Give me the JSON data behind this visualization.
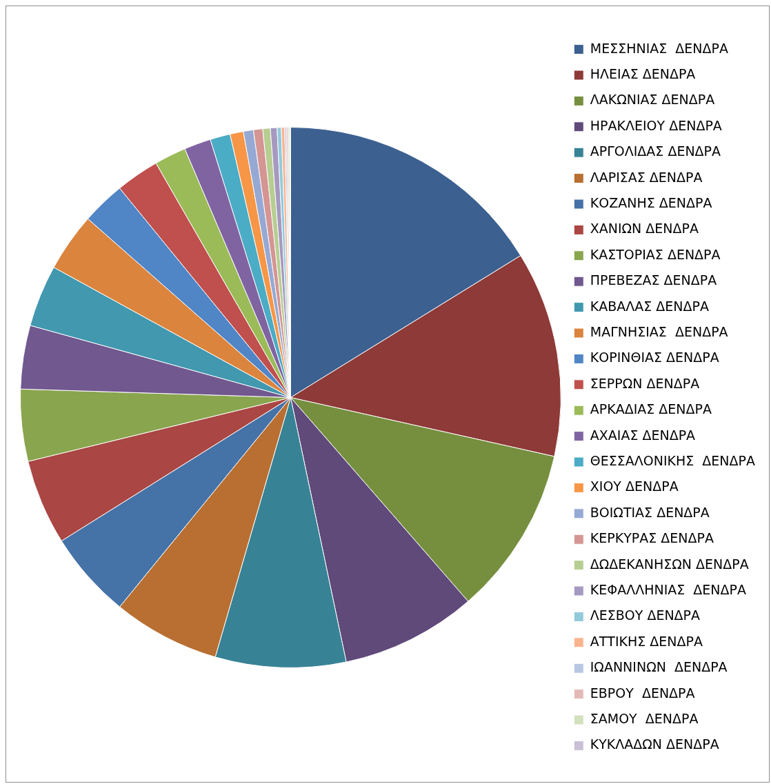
{
  "chart_data": {
    "type": "pie",
    "legend": "right",
    "categories": [
      "ΜΕΣΣΗΝΙΑΣ  ΔΕΝΔΡΑ",
      "ΗΛΕΙΑΣ ΔΕΝΔΡΑ",
      "ΛΑΚΩΝΙΑΣ ΔΕΝΔΡΑ",
      "ΗΡΑΚΛΕΙΟΥ ΔΕΝΔΡΑ",
      "ΑΡΓΟΛΙΔΑΣ ΔΕΝΔΡΑ",
      "ΛΑΡΙΣΑΣ ΔΕΝΔΡΑ",
      "ΚΟΖΑΝΗΣ ΔΕΝΔΡΑ",
      "ΧΑΝΙΩΝ ΔΕΝΔΡΑ",
      "ΚΑΣΤΟΡΙΑΣ ΔΕΝΔΡΑ",
      "ΠΡΕΒΕΖΑΣ ΔΕΝΔΡΑ",
      "ΚΑΒΑΛΑΣ ΔΕΝΔΡΑ",
      "ΜΑΓΝΗΣΙΑΣ  ΔΕΝΔΡΑ",
      "ΚΟΡΙΝΘΙΑΣ ΔΕΝΔΡΑ",
      "ΣΕΡΡΩΝ ΔΕΝΔΡΑ",
      "ΑΡΚΑΔΙΑΣ ΔΕΝΔΡΑ",
      "ΑΧΑΙΑΣ ΔΕΝΔΡΑ",
      "ΘΕΣΣΑΛΟΝΙΚΗΣ  ΔΕΝΔΡΑ",
      "ΧΙΟΥ ΔΕΝΔΡΑ",
      "ΒΟΙΩΤΙΑΣ ΔΕΝΔΡΑ",
      "ΚΕΡΚΥΡΑΣ ΔΕΝΔΡΑ",
      "ΔΩΔΕΚΑΝΗΣΩΝ ΔΕΝΔΡΑ",
      "ΚΕΦΑΛΛΗΝΙΑΣ  ΔΕΝΔΡΑ",
      "ΛΕΣΒΟΥ ΔΕΝΔΡΑ",
      "ΑΤΤΙΚΗΣ ΔΕΝΔΡΑ",
      "ΙΩΑΝΝΙΝΩΝ  ΔΕΝΔΡΑ",
      "ΕΒΡΟΥ  ΔΕΝΔΡΑ",
      "ΣΑΜΟΥ  ΔΕΝΔΡΑ",
      "ΚΥΚΛΑΔΩΝ ΔΕΝΔΡΑ"
    ],
    "values": [
      16.2,
      12.3,
      10.1,
      8.1,
      7.8,
      6.4,
      5.2,
      5.1,
      4.3,
      3.8,
      3.7,
      3.5,
      2.6,
      2.6,
      1.9,
      1.6,
      1.2,
      0.8,
      0.6,
      0.55,
      0.45,
      0.4,
      0.25,
      0.2,
      0.1,
      0.1,
      0.1,
      0.05
    ],
    "colors": [
      "#3c6090",
      "#8e3a38",
      "#768f3f",
      "#5f4a7a",
      "#388295",
      "#b86f31",
      "#4572a7",
      "#aa4643",
      "#89a54e",
      "#71588f",
      "#4198af",
      "#db843d",
      "#5085c6",
      "#c0504d",
      "#9bbb59",
      "#8064a2",
      "#4bacc6",
      "#f79646",
      "#95a9d4",
      "#d49593",
      "#b7ce92",
      "#a699c0",
      "#92cadb",
      "#f9b48e",
      "#b8c7e2",
      "#e3b9b8",
      "#d2e0be",
      "#c9c0d8"
    ]
  }
}
